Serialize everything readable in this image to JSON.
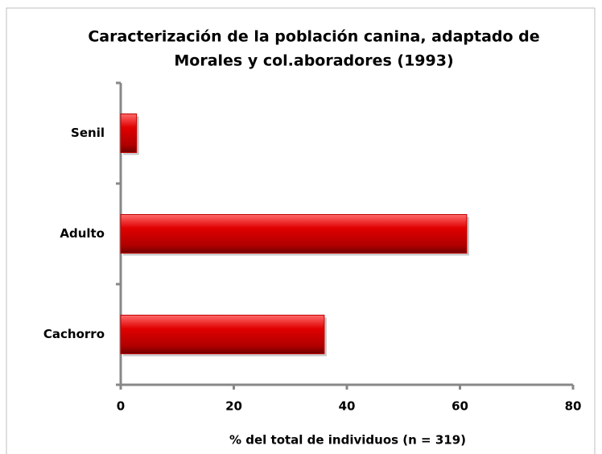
{
  "chart_data": {
    "type": "hbar",
    "title": [
      "Caracterización de la población canina, adaptado de",
      "Morales y col.aboradores (1993)"
    ],
    "xlabel": "% del total de individuos (n = 319)",
    "categories": [
      "Cachorro",
      "Adulto",
      "Senil"
    ],
    "values": [
      36.0,
      61.2,
      2.8
    ],
    "color": "#c00000",
    "xlim": [
      0,
      80
    ],
    "xticks": [
      0,
      20,
      40,
      60,
      80
    ],
    "grid": false
  }
}
